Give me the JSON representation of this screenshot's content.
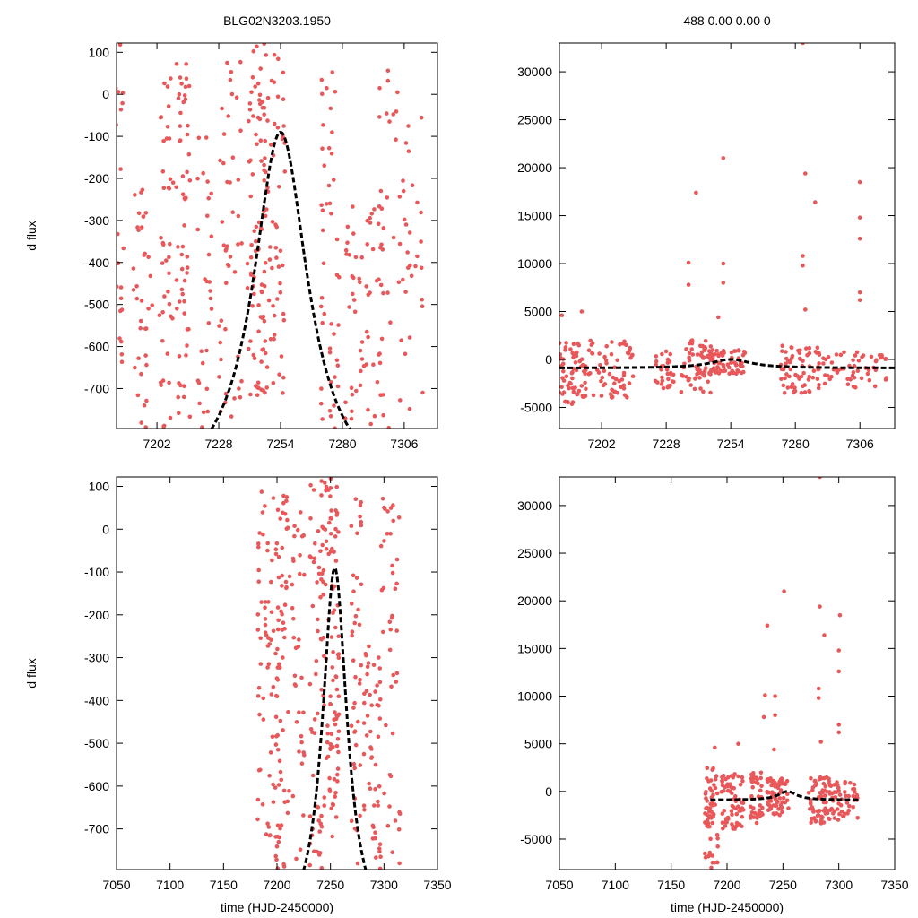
{
  "chart_data": [
    {
      "id": "tl",
      "type": "scatter",
      "title": "BLG02N3203.1950",
      "xlabel": "",
      "ylabel": "d flux",
      "xlim": [
        7185,
        7320
      ],
      "ylim": [
        -795,
        122
      ],
      "xticks": [
        7202,
        7228,
        7254,
        7280,
        7306
      ],
      "yticks": [
        100,
        0,
        -100,
        -200,
        -300,
        -400,
        -500,
        -600,
        -700
      ],
      "model": {
        "t0": 7254,
        "tau": 14,
        "peak": -90,
        "base": -960,
        "style": "dashed",
        "color": "#000000"
      },
      "point_color": "#e8585a",
      "clusters": [
        {
          "x": 7186,
          "width": 2,
          "ymin": -795,
          "ymax": 122,
          "count": 22
        },
        {
          "x": 7196,
          "width": 4,
          "ymin": -795,
          "ymax": -200,
          "count": 35
        },
        {
          "x": 7206,
          "width": 3,
          "ymin": -795,
          "ymax": 40,
          "count": 40
        },
        {
          "x": 7213,
          "width": 3,
          "ymin": -795,
          "ymax": 80,
          "count": 55
        },
        {
          "x": 7222,
          "width": 3,
          "ymin": -795,
          "ymax": -90,
          "count": 28
        },
        {
          "x": 7233,
          "width": 5,
          "ymin": -795,
          "ymax": 110,
          "count": 45
        },
        {
          "x": 7244,
          "width": 4,
          "ymin": -720,
          "ymax": 122,
          "count": 80
        },
        {
          "x": 7251,
          "width": 5,
          "ymin": -720,
          "ymax": 122,
          "count": 60
        },
        {
          "x": 7275,
          "width": 4,
          "ymin": -795,
          "ymax": 110,
          "count": 45
        },
        {
          "x": 7289,
          "width": 8,
          "ymin": -795,
          "ymax": -250,
          "count": 60
        },
        {
          "x": 7305,
          "width": 10,
          "ymin": -795,
          "ymax": 80,
          "count": 55
        }
      ]
    },
    {
      "id": "tr",
      "type": "scatter",
      "title": "488  0.00  0.00  0",
      "xlabel": "",
      "ylabel": "",
      "xlim": [
        7185,
        7320
      ],
      "ylim": [
        -7200,
        33000
      ],
      "xticks": [
        7202,
        7228,
        7254,
        7280,
        7306
      ],
      "yticks": [
        30000,
        25000,
        20000,
        15000,
        10000,
        5000,
        0,
        -5000
      ],
      "model": {
        "t0": 7254,
        "tau": 10,
        "peak": 0,
        "base": -900,
        "style": "dashed",
        "color": "#000000"
      },
      "point_color": "#e8585a",
      "clusters": [
        {
          "x": 7187,
          "width": 4,
          "ymin": -5000,
          "ymax": 2000,
          "count": 50
        },
        {
          "x": 7203,
          "width": 12,
          "ymin": -4000,
          "ymax": 2000,
          "count": 90
        },
        {
          "x": 7227,
          "width": 4,
          "ymin": -3000,
          "ymax": 1000,
          "count": 30
        },
        {
          "x": 7240,
          "width": 6,
          "ymin": -3500,
          "ymax": 2500,
          "count": 60
        },
        {
          "x": 7252,
          "width": 8,
          "ymin": -1500,
          "ymax": 1000,
          "count": 70
        },
        {
          "x": 7282,
          "width": 8,
          "ymin": -3500,
          "ymax": 1500,
          "count": 70
        },
        {
          "x": 7303,
          "width": 14,
          "ymin": -3000,
          "ymax": 1000,
          "count": 60
        }
      ],
      "outliers": [
        [
          7240,
          17400
        ],
        [
          7237,
          10100
        ],
        [
          7237,
          7800
        ],
        [
          7251,
          21000
        ],
        [
          7251,
          10000
        ],
        [
          7251,
          8000
        ],
        [
          7249,
          4400
        ],
        [
          7283,
          33000
        ],
        [
          7284,
          19400
        ],
        [
          7283,
          10800
        ],
        [
          7283,
          9800
        ],
        [
          7288,
          16400
        ],
        [
          7306,
          18500
        ],
        [
          7306,
          14800
        ],
        [
          7306,
          12600
        ],
        [
          7306,
          7000
        ],
        [
          7306,
          6200
        ],
        [
          7194,
          5000
        ],
        [
          7186,
          4600
        ],
        [
          7284,
          5200
        ]
      ]
    },
    {
      "id": "bl",
      "type": "scatter",
      "title": "",
      "xlabel": "time (HJD-2450000)",
      "ylabel": "d flux",
      "xlim": [
        7050,
        7350
      ],
      "ylim": [
        -795,
        122
      ],
      "xticks": [
        7050,
        7100,
        7150,
        7200,
        7250,
        7300,
        7350
      ],
      "yticks": [
        100,
        0,
        -100,
        -200,
        -300,
        -400,
        -500,
        -600,
        -700
      ],
      "model": {
        "t0": 7254,
        "tau": 14,
        "peak": -90,
        "base": -960,
        "style": "dashed",
        "color": "#000000"
      },
      "point_color": "#e8585a",
      "clusters": [
        {
          "x": 7186,
          "width": 4,
          "ymin": -795,
          "ymax": 90,
          "count": 30
        },
        {
          "x": 7196,
          "width": 6,
          "ymin": -795,
          "ymax": 80,
          "count": 45
        },
        {
          "x": 7206,
          "width": 6,
          "ymin": -795,
          "ymax": 80,
          "count": 55
        },
        {
          "x": 7220,
          "width": 6,
          "ymin": -795,
          "ymax": 40,
          "count": 35
        },
        {
          "x": 7236,
          "width": 6,
          "ymin": -795,
          "ymax": 122,
          "count": 50
        },
        {
          "x": 7250,
          "width": 8,
          "ymin": -720,
          "ymax": 122,
          "count": 100
        },
        {
          "x": 7274,
          "width": 5,
          "ymin": -795,
          "ymax": 90,
          "count": 40
        },
        {
          "x": 7289,
          "width": 8,
          "ymin": -795,
          "ymax": -250,
          "count": 50
        },
        {
          "x": 7305,
          "width": 10,
          "ymin": -795,
          "ymax": 80,
          "count": 45
        }
      ]
    },
    {
      "id": "br",
      "type": "scatter",
      "title": "",
      "xlabel": "time (HJD-2450000)",
      "ylabel": "",
      "xlim": [
        7050,
        7350
      ],
      "ylim": [
        -8200,
        33000
      ],
      "xticks": [
        7050,
        7100,
        7150,
        7200,
        7250,
        7300,
        7350
      ],
      "yticks": [
        30000,
        25000,
        20000,
        15000,
        10000,
        5000,
        0,
        -5000
      ],
      "model": {
        "t0": 7254,
        "tau": 10,
        "peak": 0,
        "base": -900,
        "style": "dashed",
        "color": "#000000",
        "xrange": [
          7185,
          7318
        ]
      },
      "point_color": "#e8585a",
      "clusters": [
        {
          "x": 7186,
          "width": 6,
          "ymin": -7500,
          "ymax": 2500,
          "count": 60
        },
        {
          "x": 7205,
          "width": 10,
          "ymin": -4000,
          "ymax": 2000,
          "count": 70
        },
        {
          "x": 7226,
          "width": 6,
          "ymin": -3500,
          "ymax": 2000,
          "count": 40
        },
        {
          "x": 7245,
          "width": 10,
          "ymin": -2500,
          "ymax": 1500,
          "count": 70
        },
        {
          "x": 7283,
          "width": 10,
          "ymin": -3500,
          "ymax": 1500,
          "count": 70
        },
        {
          "x": 7305,
          "width": 12,
          "ymin": -3000,
          "ymax": 1000,
          "count": 50
        }
      ],
      "outliers": [
        [
          7236,
          17400
        ],
        [
          7234,
          10100
        ],
        [
          7233,
          7800
        ],
        [
          7251,
          21000
        ],
        [
          7243,
          10000
        ],
        [
          7243,
          8000
        ],
        [
          7242,
          4400
        ],
        [
          7283,
          33000
        ],
        [
          7283,
          19400
        ],
        [
          7282,
          10800
        ],
        [
          7282,
          9800
        ],
        [
          7287,
          16400
        ],
        [
          7301,
          18500
        ],
        [
          7300,
          14800
        ],
        [
          7300,
          12600
        ],
        [
          7300,
          7000
        ],
        [
          7300,
          6200
        ],
        [
          7189,
          4600
        ],
        [
          7210,
          5000
        ],
        [
          7284,
          5200
        ],
        [
          7186,
          -8000
        ]
      ]
    }
  ]
}
